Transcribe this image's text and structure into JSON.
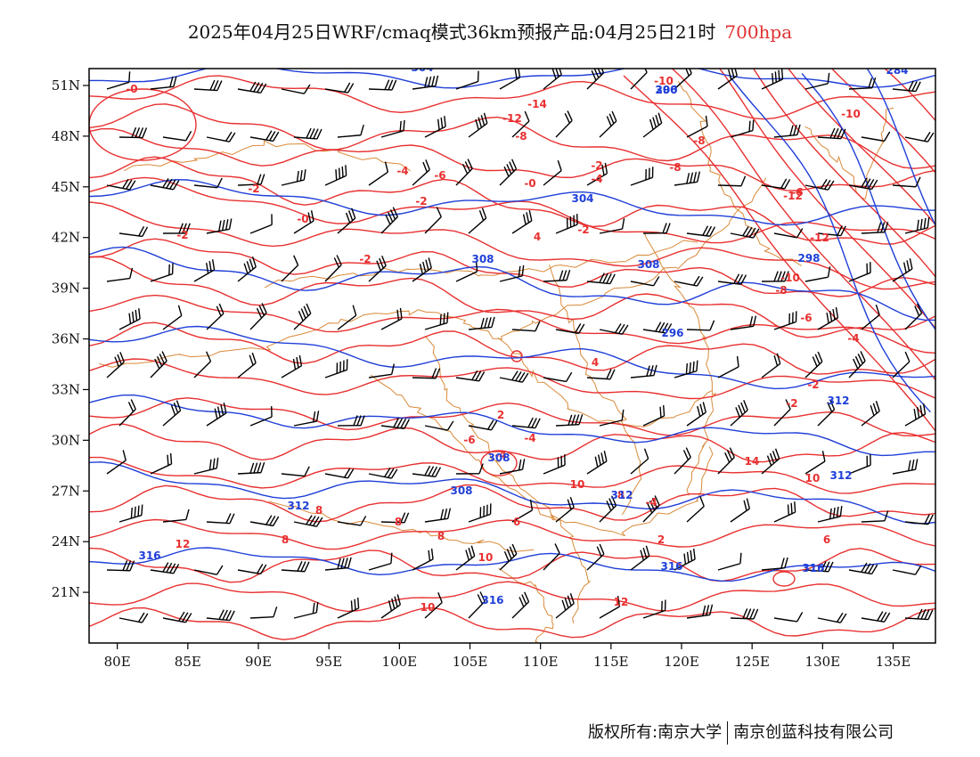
{
  "header": {
    "title": "2025年04月25日WRF/cmaq模式36km预报产品:04月25日21时",
    "level": "700hpa"
  },
  "colors": {
    "temperature": "#e83030",
    "height": "#1f3fd8",
    "border": "#d98a3a",
    "wind": "#000000"
  },
  "map": {
    "lon_range": [
      78,
      138
    ],
    "lat_range": [
      18,
      52
    ],
    "lon_ticks": [
      "80E",
      "85E",
      "90E",
      "95E",
      "100E",
      "105E",
      "110E",
      "115E",
      "120E",
      "125E",
      "130E",
      "135E"
    ],
    "lat_ticks": [
      "51N",
      "48N",
      "45N",
      "42N",
      "39N",
      "36N",
      "33N",
      "30N",
      "27N",
      "24N",
      "21N"
    ],
    "temperature_labels": [
      "-0",
      "-2",
      "-2",
      "-0",
      "-2",
      "-4",
      "-6",
      "-2",
      "-0",
      "-2",
      "-12",
      "-14",
      "-8",
      "-10",
      "-6",
      "-8",
      "-8",
      "-4",
      "-2",
      "-12",
      "-10",
      "-12",
      "-10",
      "-8",
      "-6",
      "-4",
      "-2",
      "-2",
      "4",
      "-4",
      "4",
      "2",
      "-6",
      "-4",
      "-4",
      "2",
      "6",
      "6",
      "8",
      "8",
      "8",
      "8",
      "10",
      "10",
      "12",
      "12",
      "14",
      "10",
      "10",
      "8"
    ],
    "height_labels": [
      "304",
      "300",
      "304",
      "308",
      "308",
      "298",
      "296",
      "312",
      "308",
      "308",
      "312",
      "312",
      "312",
      "316",
      "316",
      "316",
      "316",
      "284",
      "296"
    ]
  },
  "footer": {
    "left": "版权所有:南京大学",
    "right": "南京创蓝科技有限公司"
  }
}
